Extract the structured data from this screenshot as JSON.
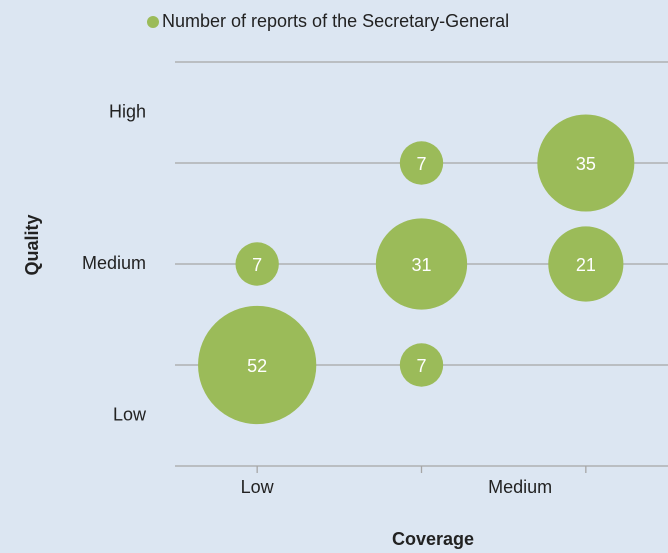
{
  "chart_data": {
    "type": "bubble",
    "legend": "Number of reports of the Secretary-General",
    "x_label": "Coverage",
    "y_label": "Quality",
    "series": [
      {
        "name": "Number of reports of the Secretary-General",
        "color": "#9bbb59",
        "x": [
          1,
          1,
          2,
          2,
          2,
          3,
          3
        ],
        "y": [
          1,
          2,
          1,
          2,
          3,
          2,
          3
        ],
        "sizes": [
          52,
          7,
          7,
          31,
          7,
          21,
          35
        ]
      }
    ],
    "xlim": [
      0.5,
      3.5
    ],
    "xticks": [
      {
        "value": 1,
        "label": "Low"
      },
      {
        "value": 2.6,
        "label": "Medium"
      }
    ],
    "x_tick_marks": [
      1,
      2,
      3
    ],
    "ylim": [
      0,
      4
    ],
    "yticks": [
      {
        "value": 0.5,
        "label": "Low"
      },
      {
        "value": 2,
        "label": "Medium"
      },
      {
        "value": 3.5,
        "label": "High"
      }
    ],
    "grid_lines": [
      1,
      2,
      3,
      4
    ],
    "grid": true
  }
}
